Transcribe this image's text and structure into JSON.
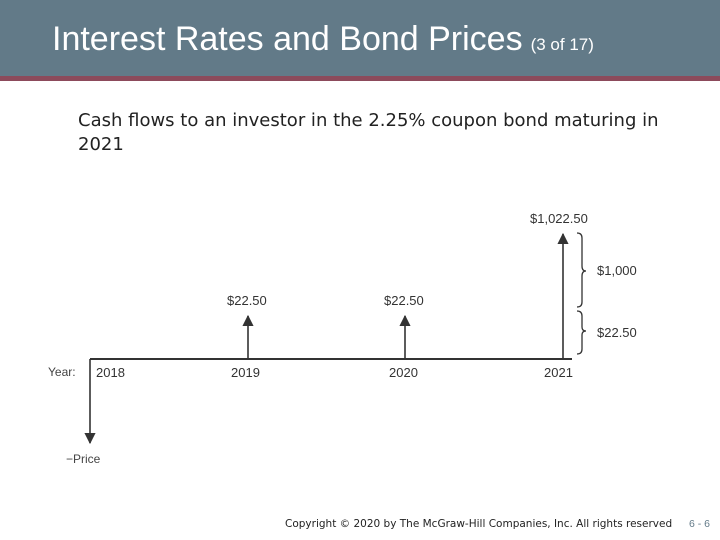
{
  "slide": {
    "title": "Interest Rates and Bond Prices",
    "title_suffix": "(3 of 17)",
    "caption": "Cash flows to an investor in the 2.25% coupon bond maturing in 2021",
    "footer": "Copyright © 2020 by The McGraw-Hill Companies, Inc. All rights reserved",
    "page_number": "6 - 6"
  },
  "colors": {
    "header": "#627a88",
    "header_rule": "#8c4a5b",
    "ink": "#333333"
  },
  "diagram": {
    "year_axis_label": "Year:",
    "years": [
      "2018",
      "2019",
      "2020",
      "2021"
    ],
    "outflow_label": "−Price",
    "cash_flows": [
      {
        "year": "2019",
        "label": "$22.50"
      },
      {
        "year": "2020",
        "label": "$22.50"
      },
      {
        "year": "2021",
        "label": "$1,022.50"
      }
    ],
    "final_breakdown": [
      {
        "label": "$1,000"
      },
      {
        "label": "$22.50"
      }
    ]
  }
}
